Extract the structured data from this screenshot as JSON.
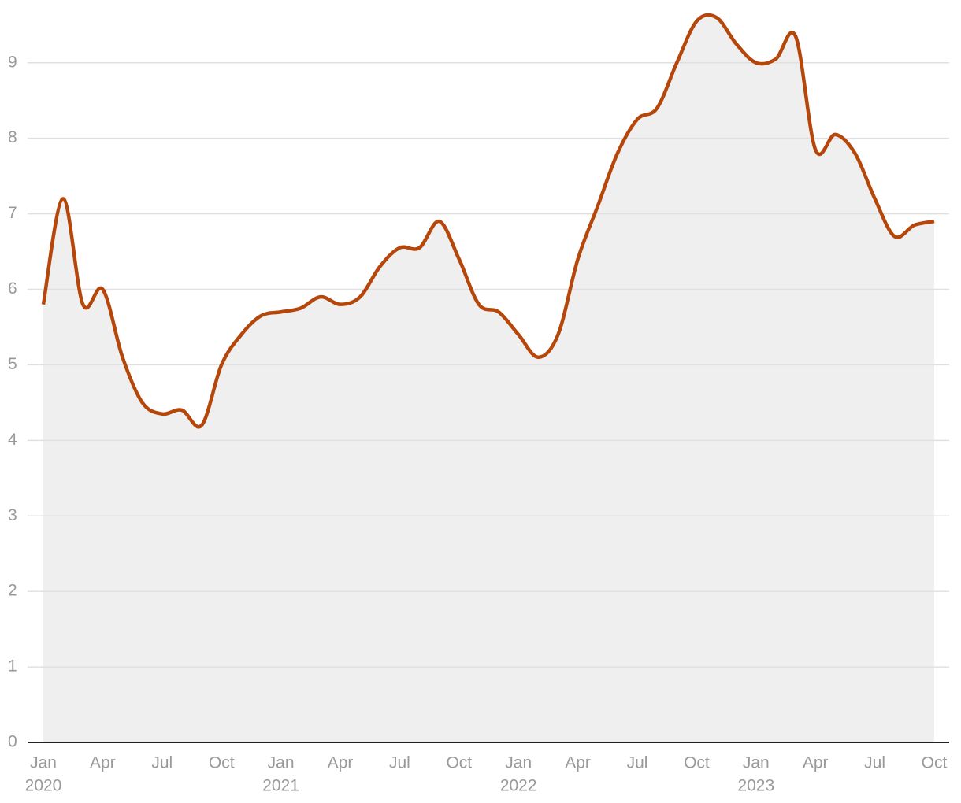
{
  "chart_data": {
    "type": "line",
    "x": [
      "2020-01",
      "2020-02",
      "2020-03",
      "2020-04",
      "2020-05",
      "2020-06",
      "2020-07",
      "2020-08",
      "2020-09",
      "2020-10",
      "2020-11",
      "2020-12",
      "2021-01",
      "2021-02",
      "2021-03",
      "2021-04",
      "2021-05",
      "2021-06",
      "2021-07",
      "2021-08",
      "2021-09",
      "2021-10",
      "2021-11",
      "2021-12",
      "2022-01",
      "2022-02",
      "2022-03",
      "2022-04",
      "2022-05",
      "2022-06",
      "2022-07",
      "2022-08",
      "2022-09",
      "2022-10",
      "2022-11",
      "2022-12",
      "2023-01",
      "2023-02",
      "2023-03",
      "2023-04",
      "2023-05",
      "2023-06",
      "2023-07",
      "2023-08",
      "2023-09",
      "2023-10"
    ],
    "series": [
      {
        "color": "#b5470b",
        "values": [
          5.8,
          7.2,
          5.8,
          6.0,
          5.1,
          4.5,
          4.35,
          4.4,
          4.2,
          5.0,
          5.4,
          5.65,
          5.7,
          5.75,
          5.9,
          5.8,
          5.9,
          6.3,
          6.55,
          6.55,
          6.9,
          6.4,
          5.8,
          5.7,
          5.4,
          5.1,
          5.4,
          6.4,
          7.1,
          7.8,
          8.25,
          8.4,
          9.0,
          9.55,
          9.6,
          9.25,
          9.0,
          9.05,
          9.35,
          7.85,
          8.05,
          7.8,
          7.2,
          6.7,
          6.85,
          6.9
        ]
      }
    ],
    "area_color": "#efefef",
    "ylim": [
      0,
      9.8
    ],
    "yticks": [
      0,
      1,
      2,
      3,
      4,
      5,
      6,
      7,
      8,
      9
    ],
    "grid": true,
    "xticks": [
      {
        "value": "2020-01",
        "label": "Jan"
      },
      {
        "value": "2020-04",
        "label": "Apr"
      },
      {
        "value": "2020-07",
        "label": "Jul"
      },
      {
        "value": "2020-10",
        "label": "Oct"
      },
      {
        "value": "2021-01",
        "label": "Jan"
      },
      {
        "value": "2021-04",
        "label": "Apr"
      },
      {
        "value": "2021-07",
        "label": "Jul"
      },
      {
        "value": "2021-10",
        "label": "Oct"
      },
      {
        "value": "2022-01",
        "label": "Jan"
      },
      {
        "value": "2022-04",
        "label": "Apr"
      },
      {
        "value": "2022-07",
        "label": "Jul"
      },
      {
        "value": "2022-10",
        "label": "Oct"
      },
      {
        "value": "2023-01",
        "label": "Jan"
      },
      {
        "value": "2023-04",
        "label": "Apr"
      },
      {
        "value": "2023-07",
        "label": "Jul"
      },
      {
        "value": "2023-10",
        "label": "Oct"
      }
    ],
    "xtick_years": [
      {
        "value": "2020-01",
        "label": "2020"
      },
      {
        "value": "2021-01",
        "label": "2021"
      },
      {
        "value": "2022-01",
        "label": "2022"
      },
      {
        "value": "2023-01",
        "label": "2023"
      }
    ]
  }
}
